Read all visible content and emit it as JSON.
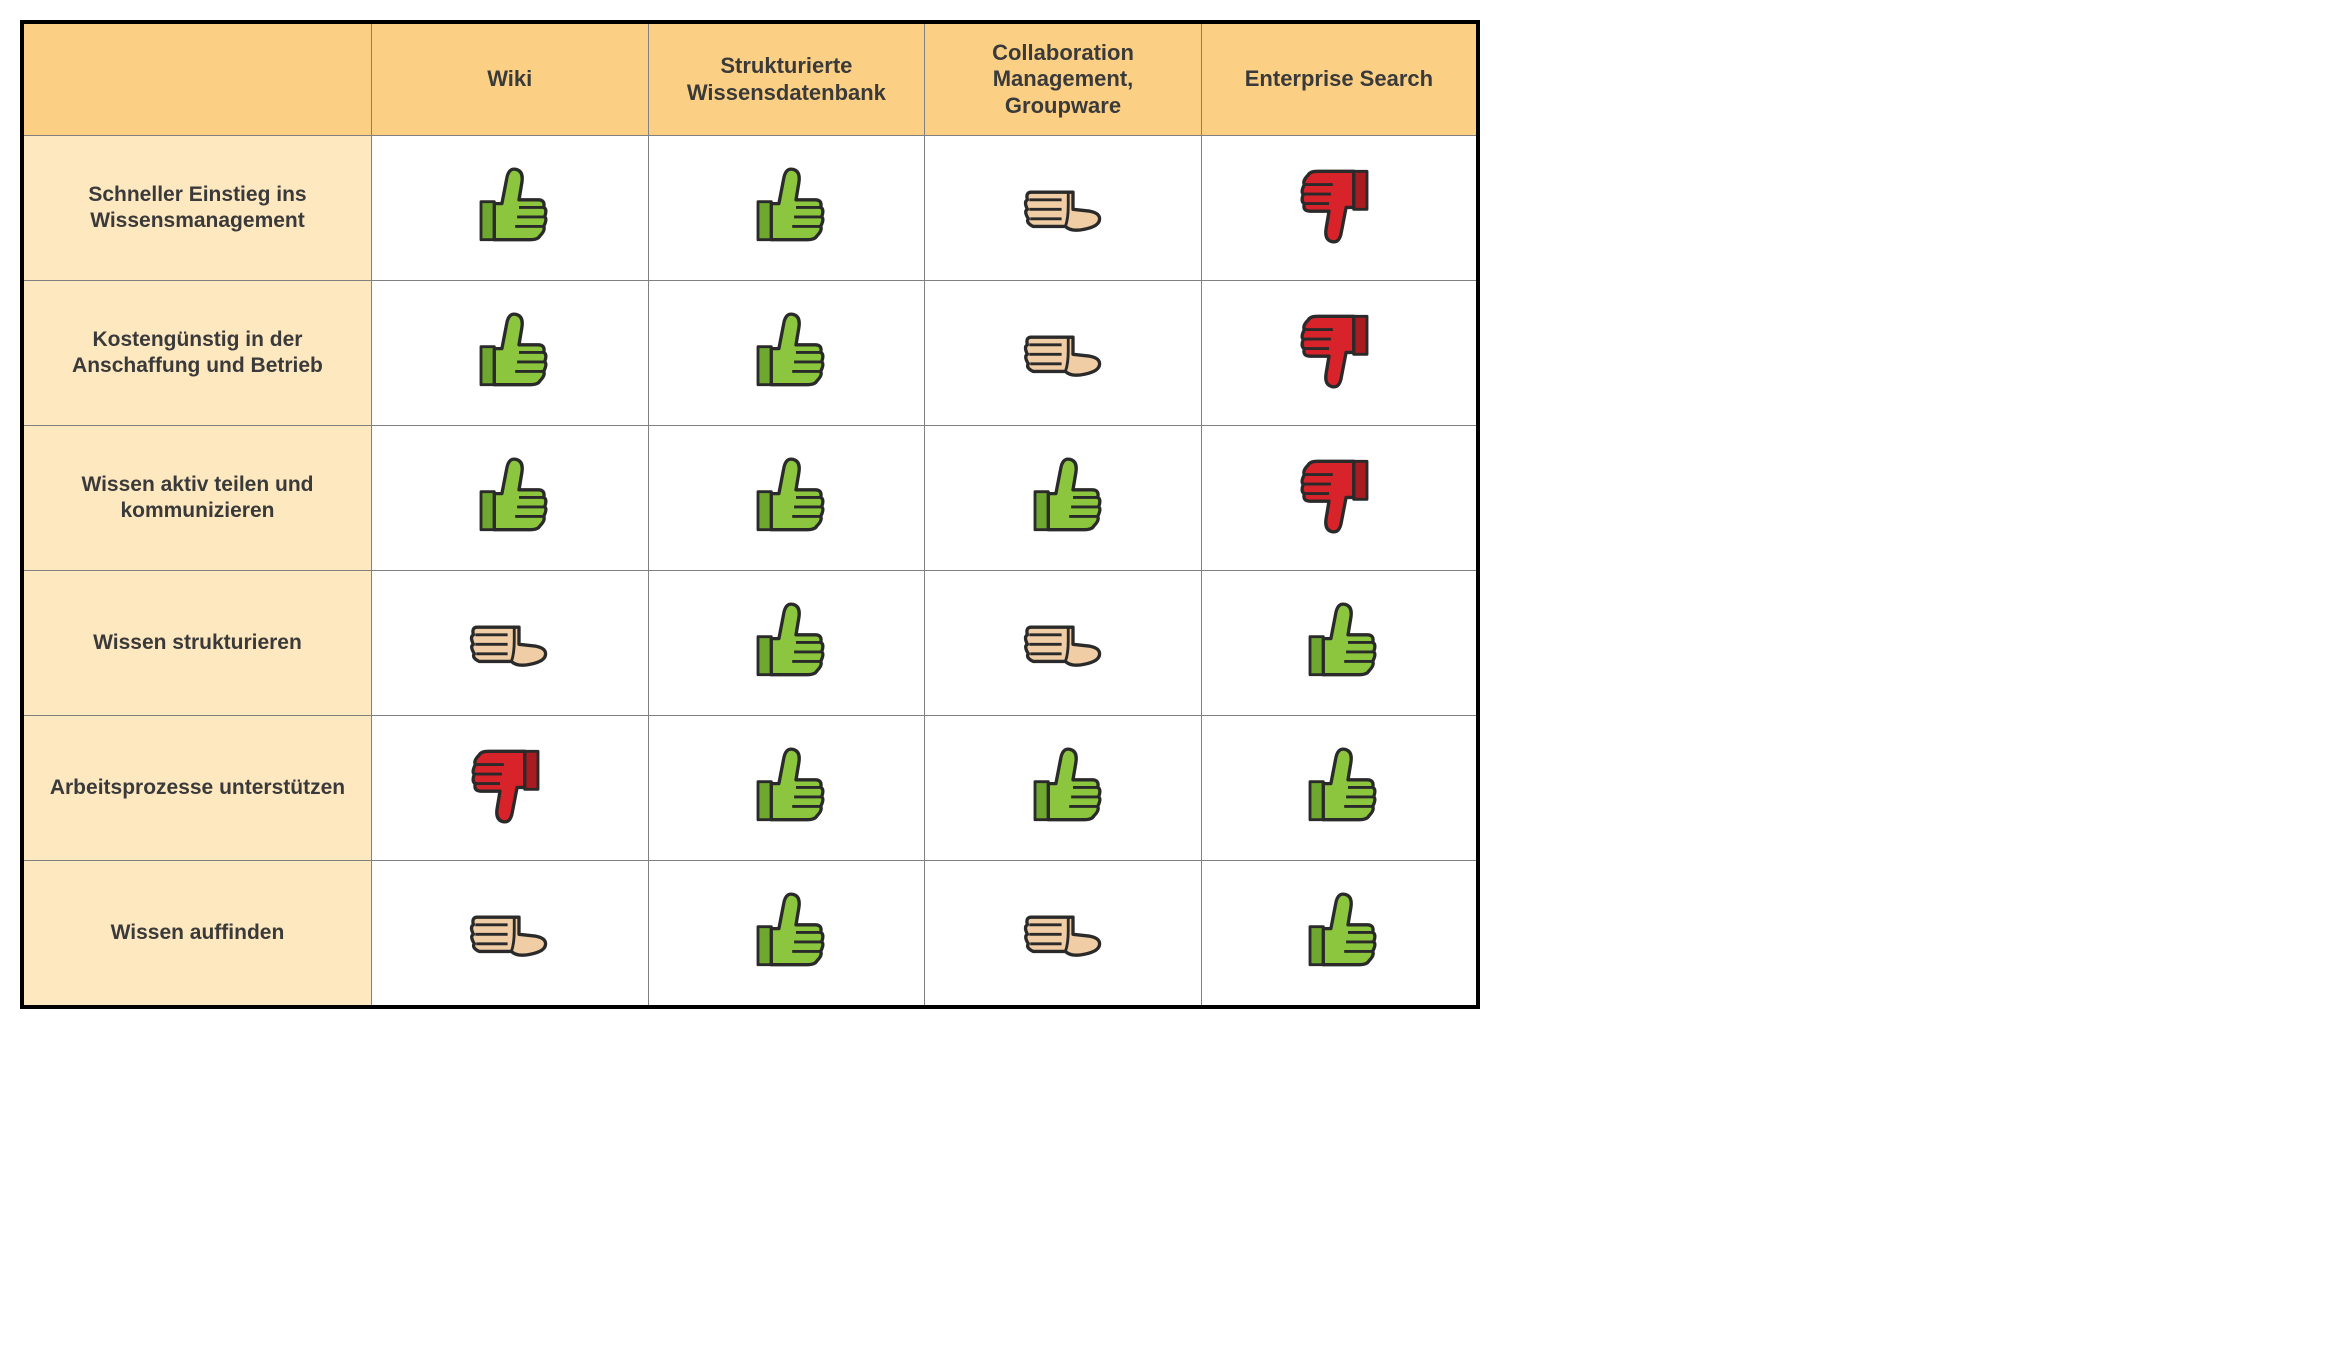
{
  "table": {
    "type": "comparison-matrix",
    "columns": [
      "Wiki",
      "Strukturierte Wissensdatenbank",
      "Collaboration Management, Groupware",
      "Enterprise Search"
    ],
    "rows": [
      {
        "label": "Schneller Einstieg ins Wissensmanagement",
        "ratings": [
          "up",
          "up",
          "side",
          "down"
        ]
      },
      {
        "label": "Kostengünstig in der Anschaffung und Betrieb",
        "ratings": [
          "up",
          "up",
          "side",
          "down"
        ]
      },
      {
        "label": "Wissen aktiv teilen und kommunizieren",
        "ratings": [
          "up",
          "up",
          "up",
          "down"
        ]
      },
      {
        "label": "Wissen strukturieren",
        "ratings": [
          "side",
          "up",
          "side",
          "up"
        ]
      },
      {
        "label": "Arbeitsprozesse unterstützen",
        "ratings": [
          "down",
          "up",
          "up",
          "up"
        ]
      },
      {
        "label": "Wissen auffinden",
        "ratings": [
          "side",
          "up",
          "side",
          "up"
        ]
      }
    ],
    "icon_colors": {
      "up": {
        "fill": "#8cc63f",
        "stroke": "#2a2a2a",
        "shade": "#6fa82e"
      },
      "down": {
        "fill": "#d8232a",
        "stroke": "#2a2a2a",
        "shade": "#a81b20"
      },
      "side": {
        "fill": "#f0cda5",
        "stroke": "#2a2a2a",
        "shade": "#d9b288"
      }
    },
    "header_bg": "#fbd085",
    "row_header_bg": "#fde8c0",
    "cell_bg": "#ffffff",
    "border_color": "#808080",
    "outer_border_color": "#000000",
    "header_text_color": "#3a3a3a",
    "row_header_text_color": "#3a3a3a",
    "header_fontsize": 22,
    "row_header_fontsize": 21
  }
}
